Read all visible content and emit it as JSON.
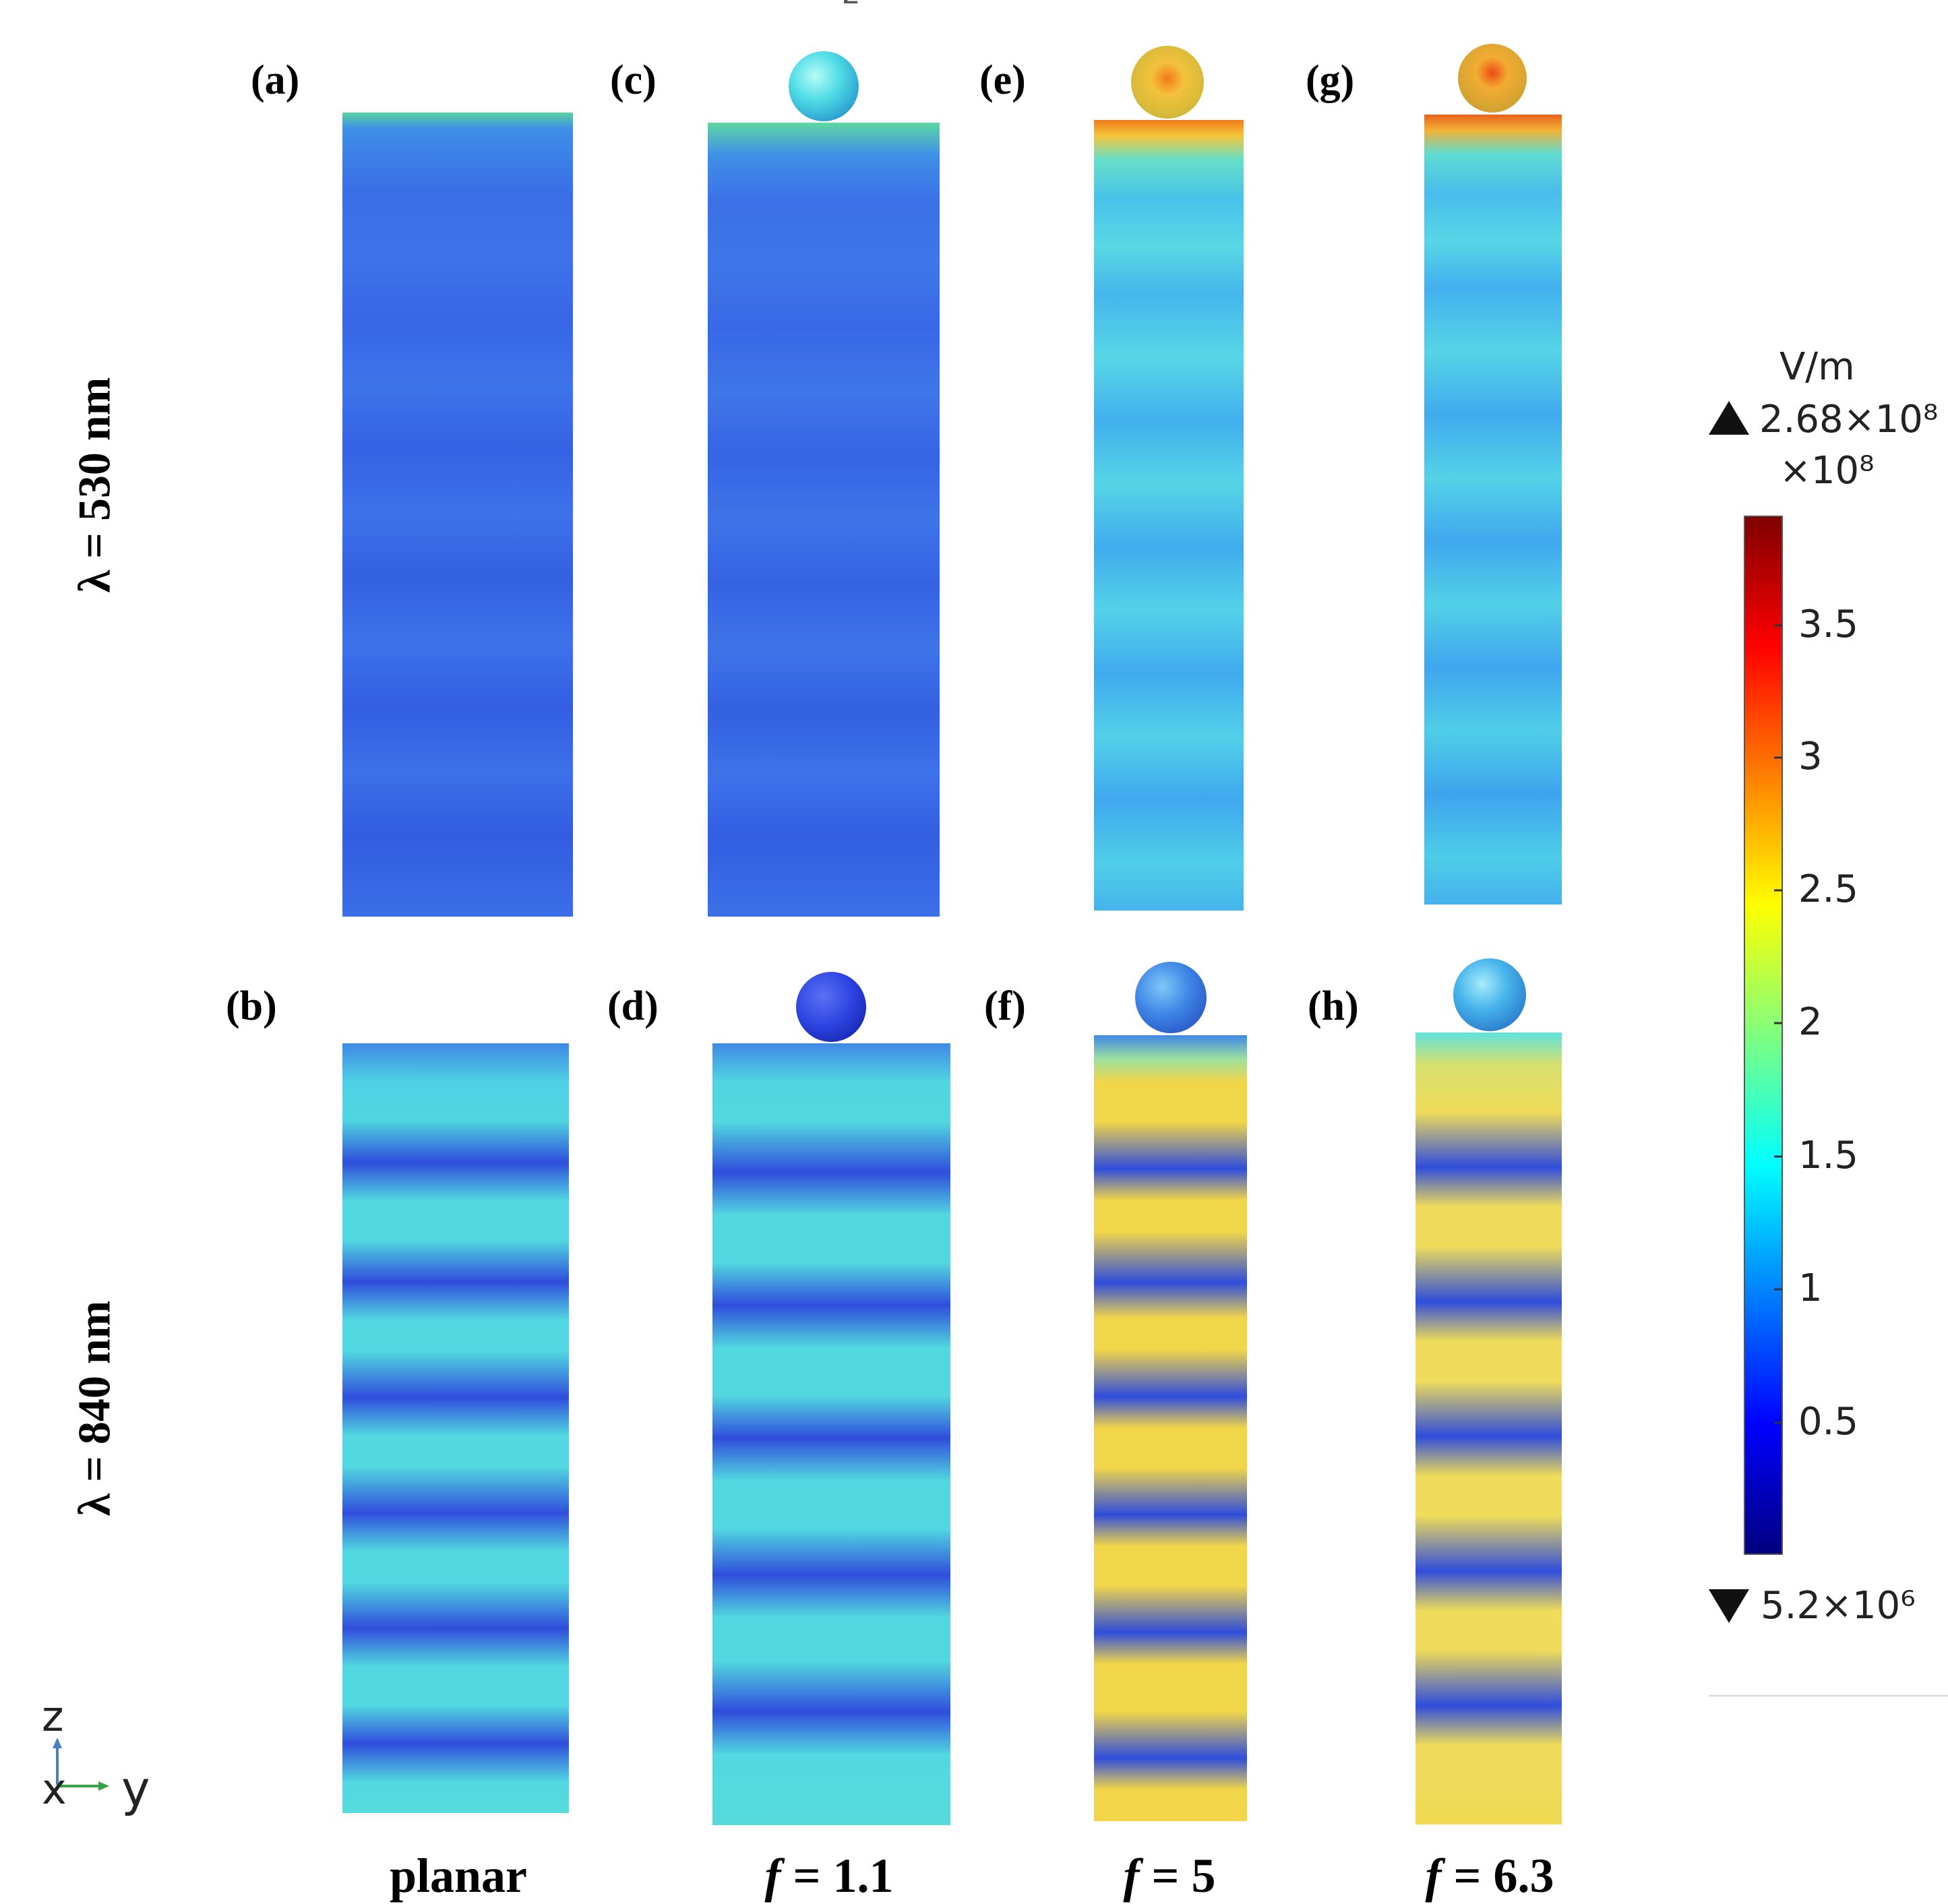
{
  "top_mark": "z",
  "panels": {
    "a": "(a)",
    "b": "(b)",
    "c": "(c)",
    "d": "(d)",
    "e": "(e)",
    "f": "(f)",
    "g": "(g)",
    "h": "(h)"
  },
  "rows": {
    "top": "λ = 530 nm",
    "bottom": "λ = 840 nm"
  },
  "columns": {
    "c1": {
      "prefix": "",
      "text": "planar"
    },
    "c2": {
      "prefix": "f",
      "text": " = 1.1"
    },
    "c3": {
      "prefix": "f",
      "text": " = 5"
    },
    "c4": {
      "prefix": "f",
      "text": " = 6.3"
    }
  },
  "colorbar": {
    "unit": "V/m",
    "max": "2.68×10⁸",
    "multiplier": "×10⁸",
    "min": "5.2×10⁶",
    "ticks": [
      "3.5",
      "3",
      "2.5",
      "2",
      "1.5",
      "1",
      "0.5"
    ],
    "colormap": "jet",
    "colors": [
      "#00007f",
      "#0000ff",
      "#007fff",
      "#00ffff",
      "#7fff7f",
      "#ffff00",
      "#ff7f00",
      "#ff0000",
      "#7f0000"
    ]
  },
  "axes_triad": {
    "z": "z",
    "x": "x",
    "y": "y"
  }
}
